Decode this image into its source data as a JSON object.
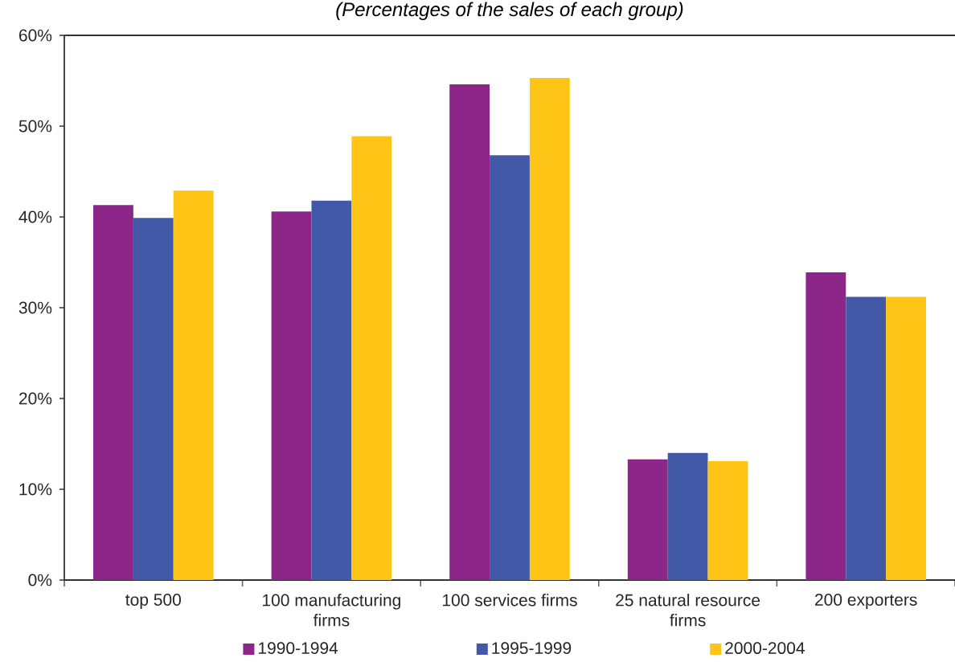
{
  "chart_data": {
    "type": "bar",
    "title": "(Percentages of the sales of each group)",
    "categories": [
      "top 500",
      "100 manufacturing firms",
      "100 services firms",
      "25 natural resource firms",
      "200 exporters"
    ],
    "series": [
      {
        "name": "1990-1994",
        "color": "#8c2789",
        "values": [
          41.3,
          40.6,
          54.6,
          13.3,
          33.9
        ]
      },
      {
        "name": "1995-1999",
        "color": "#4259a8",
        "values": [
          39.9,
          41.8,
          46.8,
          14.0,
          31.2
        ]
      },
      {
        "name": "2000-2004",
        "color": "#fec516",
        "values": [
          42.9,
          48.9,
          55.3,
          13.1,
          31.2
        ]
      }
    ],
    "ylim": [
      0,
      60
    ],
    "yticks": [
      {
        "value": 0,
        "label": "0%"
      },
      {
        "value": 10,
        "label": "10%"
      },
      {
        "value": 20,
        "label": "20%"
      },
      {
        "value": 30,
        "label": "30%"
      },
      {
        "value": 40,
        "label": "40%"
      },
      {
        "value": 50,
        "label": "50%"
      },
      {
        "value": 60,
        "label": "60%"
      }
    ],
    "legend": "bottom"
  }
}
